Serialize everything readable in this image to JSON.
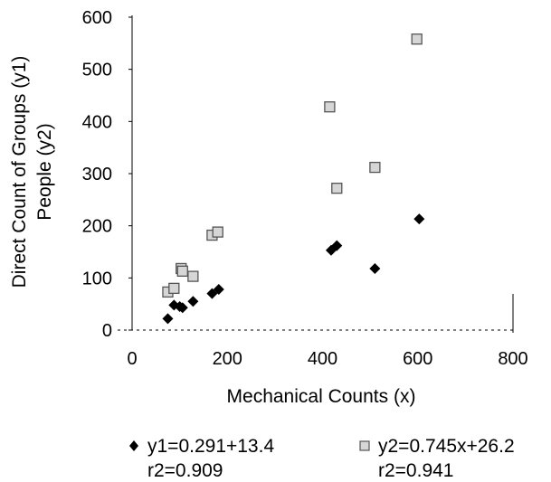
{
  "chart_data": {
    "type": "scatter",
    "xlabel": "Mechanical Counts (x)",
    "ylabel_line1": "Direct Count of Groups (y1)",
    "ylabel_line2": "People (y2)",
    "xlim": [
      0,
      800
    ],
    "ylim": [
      0,
      600
    ],
    "xticks": [
      0,
      200,
      400,
      600,
      800
    ],
    "yticks": [
      0,
      100,
      200,
      300,
      400,
      500,
      600
    ],
    "grid": false,
    "legend_position": "bottom",
    "series": [
      {
        "name": "y1",
        "marker": "diamond",
        "color": "#000000",
        "legend_line1": "y1=0.291+13.4",
        "legend_line2": "r2=0.909",
        "points": [
          [
            75,
            22
          ],
          [
            88,
            48
          ],
          [
            100,
            45
          ],
          [
            106,
            43
          ],
          [
            128,
            55
          ],
          [
            168,
            70
          ],
          [
            182,
            78
          ],
          [
            418,
            153
          ],
          [
            430,
            162
          ],
          [
            510,
            118
          ],
          [
            603,
            213
          ]
        ]
      },
      {
        "name": "y2",
        "marker": "square",
        "color": "#888888",
        "legend_line1": "y2=0.745x+26.2",
        "legend_line2": "r2=0.941",
        "points": [
          [
            75,
            73
          ],
          [
            88,
            80
          ],
          [
            103,
            118
          ],
          [
            106,
            113
          ],
          [
            128,
            103
          ],
          [
            168,
            182
          ],
          [
            180,
            188
          ],
          [
            415,
            428
          ],
          [
            430,
            272
          ],
          [
            510,
            312
          ],
          [
            598,
            558
          ]
        ]
      }
    ]
  }
}
